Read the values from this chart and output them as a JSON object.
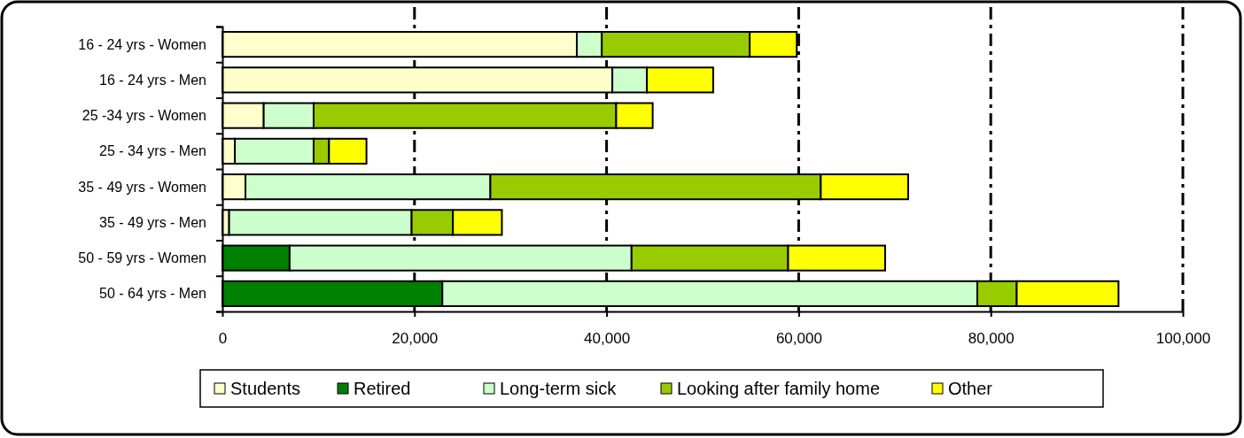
{
  "chart_data": {
    "type": "bar",
    "orientation": "horizontal",
    "stacked": true,
    "categories": [
      "16 - 24 yrs - Women",
      "16 - 24 yrs - Men",
      "25 -34 yrs - Women",
      "25 - 34 yrs - Men",
      "35 - 49 yrs - Women",
      "35 - 49 yrs - Men",
      "50 - 59 yrs - Women",
      "50 - 64 yrs - Men"
    ],
    "series": [
      {
        "name": "Students",
        "color": "#ffffcc",
        "values": [
          36900,
          40600,
          4300,
          1300,
          2400,
          700,
          0,
          0
        ]
      },
      {
        "name": "Retired",
        "color": "#008000",
        "values": [
          0,
          0,
          0,
          0,
          0,
          0,
          7000,
          22900
        ]
      },
      {
        "name": "Long-term sick",
        "color": "#ccffcc",
        "values": [
          2600,
          3600,
          5200,
          8200,
          25500,
          19000,
          35600,
          55700
        ]
      },
      {
        "name": "Looking after family home",
        "color": "#99cc00",
        "values": [
          15400,
          0,
          31500,
          1600,
          34400,
          4300,
          16300,
          4100
        ]
      },
      {
        "name": "Other",
        "color": "#ffff00",
        "values": [
          4900,
          6900,
          3800,
          3900,
          9100,
          5100,
          10100,
          10600
        ]
      }
    ],
    "xlim": [
      0,
      100000
    ],
    "xticks": [
      0,
      {
        "value": 20000,
        "label": "20,000"
      },
      {
        "value": 40000,
        "label": "40,000"
      },
      {
        "value": 60000,
        "label": "60,000"
      },
      {
        "value": 80000,
        "label": "80,000"
      },
      {
        "value": 100000,
        "label": "100,000"
      }
    ],
    "grid": "x",
    "legend": "bottom"
  }
}
